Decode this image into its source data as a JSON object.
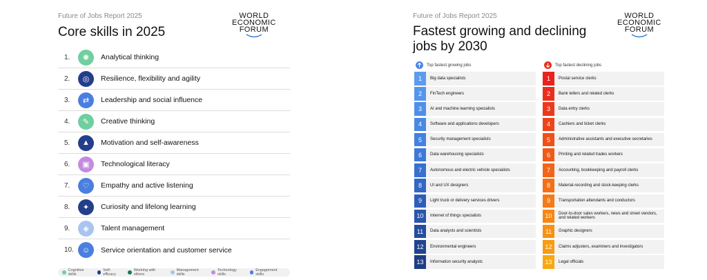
{
  "left": {
    "report": "Future of Jobs Report 2025",
    "title": "Core skills in 2025",
    "logo": [
      "WORLD",
      "ECONOMIC",
      "FORUM"
    ],
    "skills": [
      {
        "num": "1.",
        "label": "Analytical thinking",
        "color": "#6fcf9e",
        "icon": "brain-icon"
      },
      {
        "num": "2.",
        "label": "Resilience, flexibility and agility",
        "color": "#233f8c",
        "icon": "resilience-icon"
      },
      {
        "num": "3.",
        "label": "Leadership and social influence",
        "color": "#4a7fe0",
        "icon": "handshake-icon"
      },
      {
        "num": "4.",
        "label": "Creative thinking",
        "color": "#6fcf9e",
        "icon": "creative-icon"
      },
      {
        "num": "5.",
        "label": "Motivation and self-awareness",
        "color": "#233f8c",
        "icon": "motivation-icon"
      },
      {
        "num": "6.",
        "label": "Technological literacy",
        "color": "#c38be0",
        "icon": "computer-icon"
      },
      {
        "num": "7.",
        "label": "Empathy and active listening",
        "color": "#4a7fe0",
        "icon": "empathy-icon"
      },
      {
        "num": "8.",
        "label": "Curiosity and lifelong learning",
        "color": "#233f8c",
        "icon": "curiosity-icon"
      },
      {
        "num": "9.",
        "label": "Talent management",
        "color": "#a9c4f0",
        "icon": "talent-icon"
      },
      {
        "num": "10.",
        "label": "Service orientation and customer service",
        "color": "#4a7fe0",
        "icon": "service-icon"
      }
    ],
    "legend": [
      {
        "label": "Cognitive skills",
        "color": "#6fcf9e"
      },
      {
        "label": "Self-efficacy",
        "color": "#233f8c"
      },
      {
        "label": "Working with others",
        "color": "#1a7a4c"
      },
      {
        "label": "Management skills",
        "color": "#a9c4f0"
      },
      {
        "label": "Technology skills",
        "color": "#c38be0"
      },
      {
        "label": "Engagement skills",
        "color": "#4a7fe0"
      }
    ]
  },
  "right": {
    "report": "Future of Jobs Report 2025",
    "title_line1": "Fastest growing and declining",
    "title_line2": "jobs by 2030",
    "logo": [
      "WORLD",
      "ECONOMIC",
      "FORUM"
    ],
    "growing_header": "Top fastest growing jobs",
    "declining_header": "Top fastest declining jobs",
    "growing_color": "#4a86e8",
    "declining_color": "#e8321e",
    "growing": [
      {
        "num": "1",
        "label": "Big data specialists",
        "color": "#5b9cf0"
      },
      {
        "num": "2",
        "label": "FinTech engineers",
        "color": "#5596ed"
      },
      {
        "num": "3",
        "label": "AI and machine learning specialists",
        "color": "#4f8fe9"
      },
      {
        "num": "4",
        "label": "Software and applications developers",
        "color": "#4988e4"
      },
      {
        "num": "5",
        "label": "Security management specialists",
        "color": "#4381df"
      },
      {
        "num": "6",
        "label": "Data warehousing specialists",
        "color": "#3d79d8"
      },
      {
        "num": "7",
        "label": "Autonomous and electric vehicle specialists",
        "color": "#3770cf"
      },
      {
        "num": "8",
        "label": "UI and UX designers",
        "color": "#3267c4"
      },
      {
        "num": "9",
        "label": "Light truck or delivery services drivers",
        "color": "#2d5eb8"
      },
      {
        "num": "10",
        "label": "Internet of things specialists",
        "color": "#2955ab"
      },
      {
        "num": "11",
        "label": "Data analysts and scientists",
        "color": "#254c9e"
      },
      {
        "num": "12",
        "label": "Environmental engineers",
        "color": "#214491"
      },
      {
        "num": "13",
        "label": "Information security analysts",
        "color": "#1e3d84"
      }
    ],
    "declining": [
      {
        "num": "1",
        "label": "Postal service clerks",
        "color": "#e8231e"
      },
      {
        "num": "2",
        "label": "Bank tellers and related clerks",
        "color": "#ea2e1d"
      },
      {
        "num": "3",
        "label": "Data entry clerks",
        "color": "#ec391c"
      },
      {
        "num": "4",
        "label": "Cashiers and ticket clerks",
        "color": "#ee441b"
      },
      {
        "num": "5",
        "label": "Administrative assistants and executive secretaries",
        "color": "#f04f1a"
      },
      {
        "num": "6",
        "label": "Printing and related trades workers",
        "color": "#f15a19"
      },
      {
        "num": "7",
        "label": "Accounting, bookkeeping and payroll clerks",
        "color": "#f26518"
      },
      {
        "num": "8",
        "label": "Material-recording and stock-keeping clerks",
        "color": "#f37017"
      },
      {
        "num": "9",
        "label": "Transportation attendants and conductors",
        "color": "#f47b16"
      },
      {
        "num": "10",
        "label": "Door-to-door sales workers, news and street vendors, and related workers",
        "color": "#f58615"
      },
      {
        "num": "11",
        "label": "Graphic designers",
        "color": "#f69114"
      },
      {
        "num": "12",
        "label": "Claims adjusters, examiners and investigators",
        "color": "#f79c13"
      },
      {
        "num": "13",
        "label": "Legal officials",
        "color": "#f8a712"
      }
    ]
  }
}
